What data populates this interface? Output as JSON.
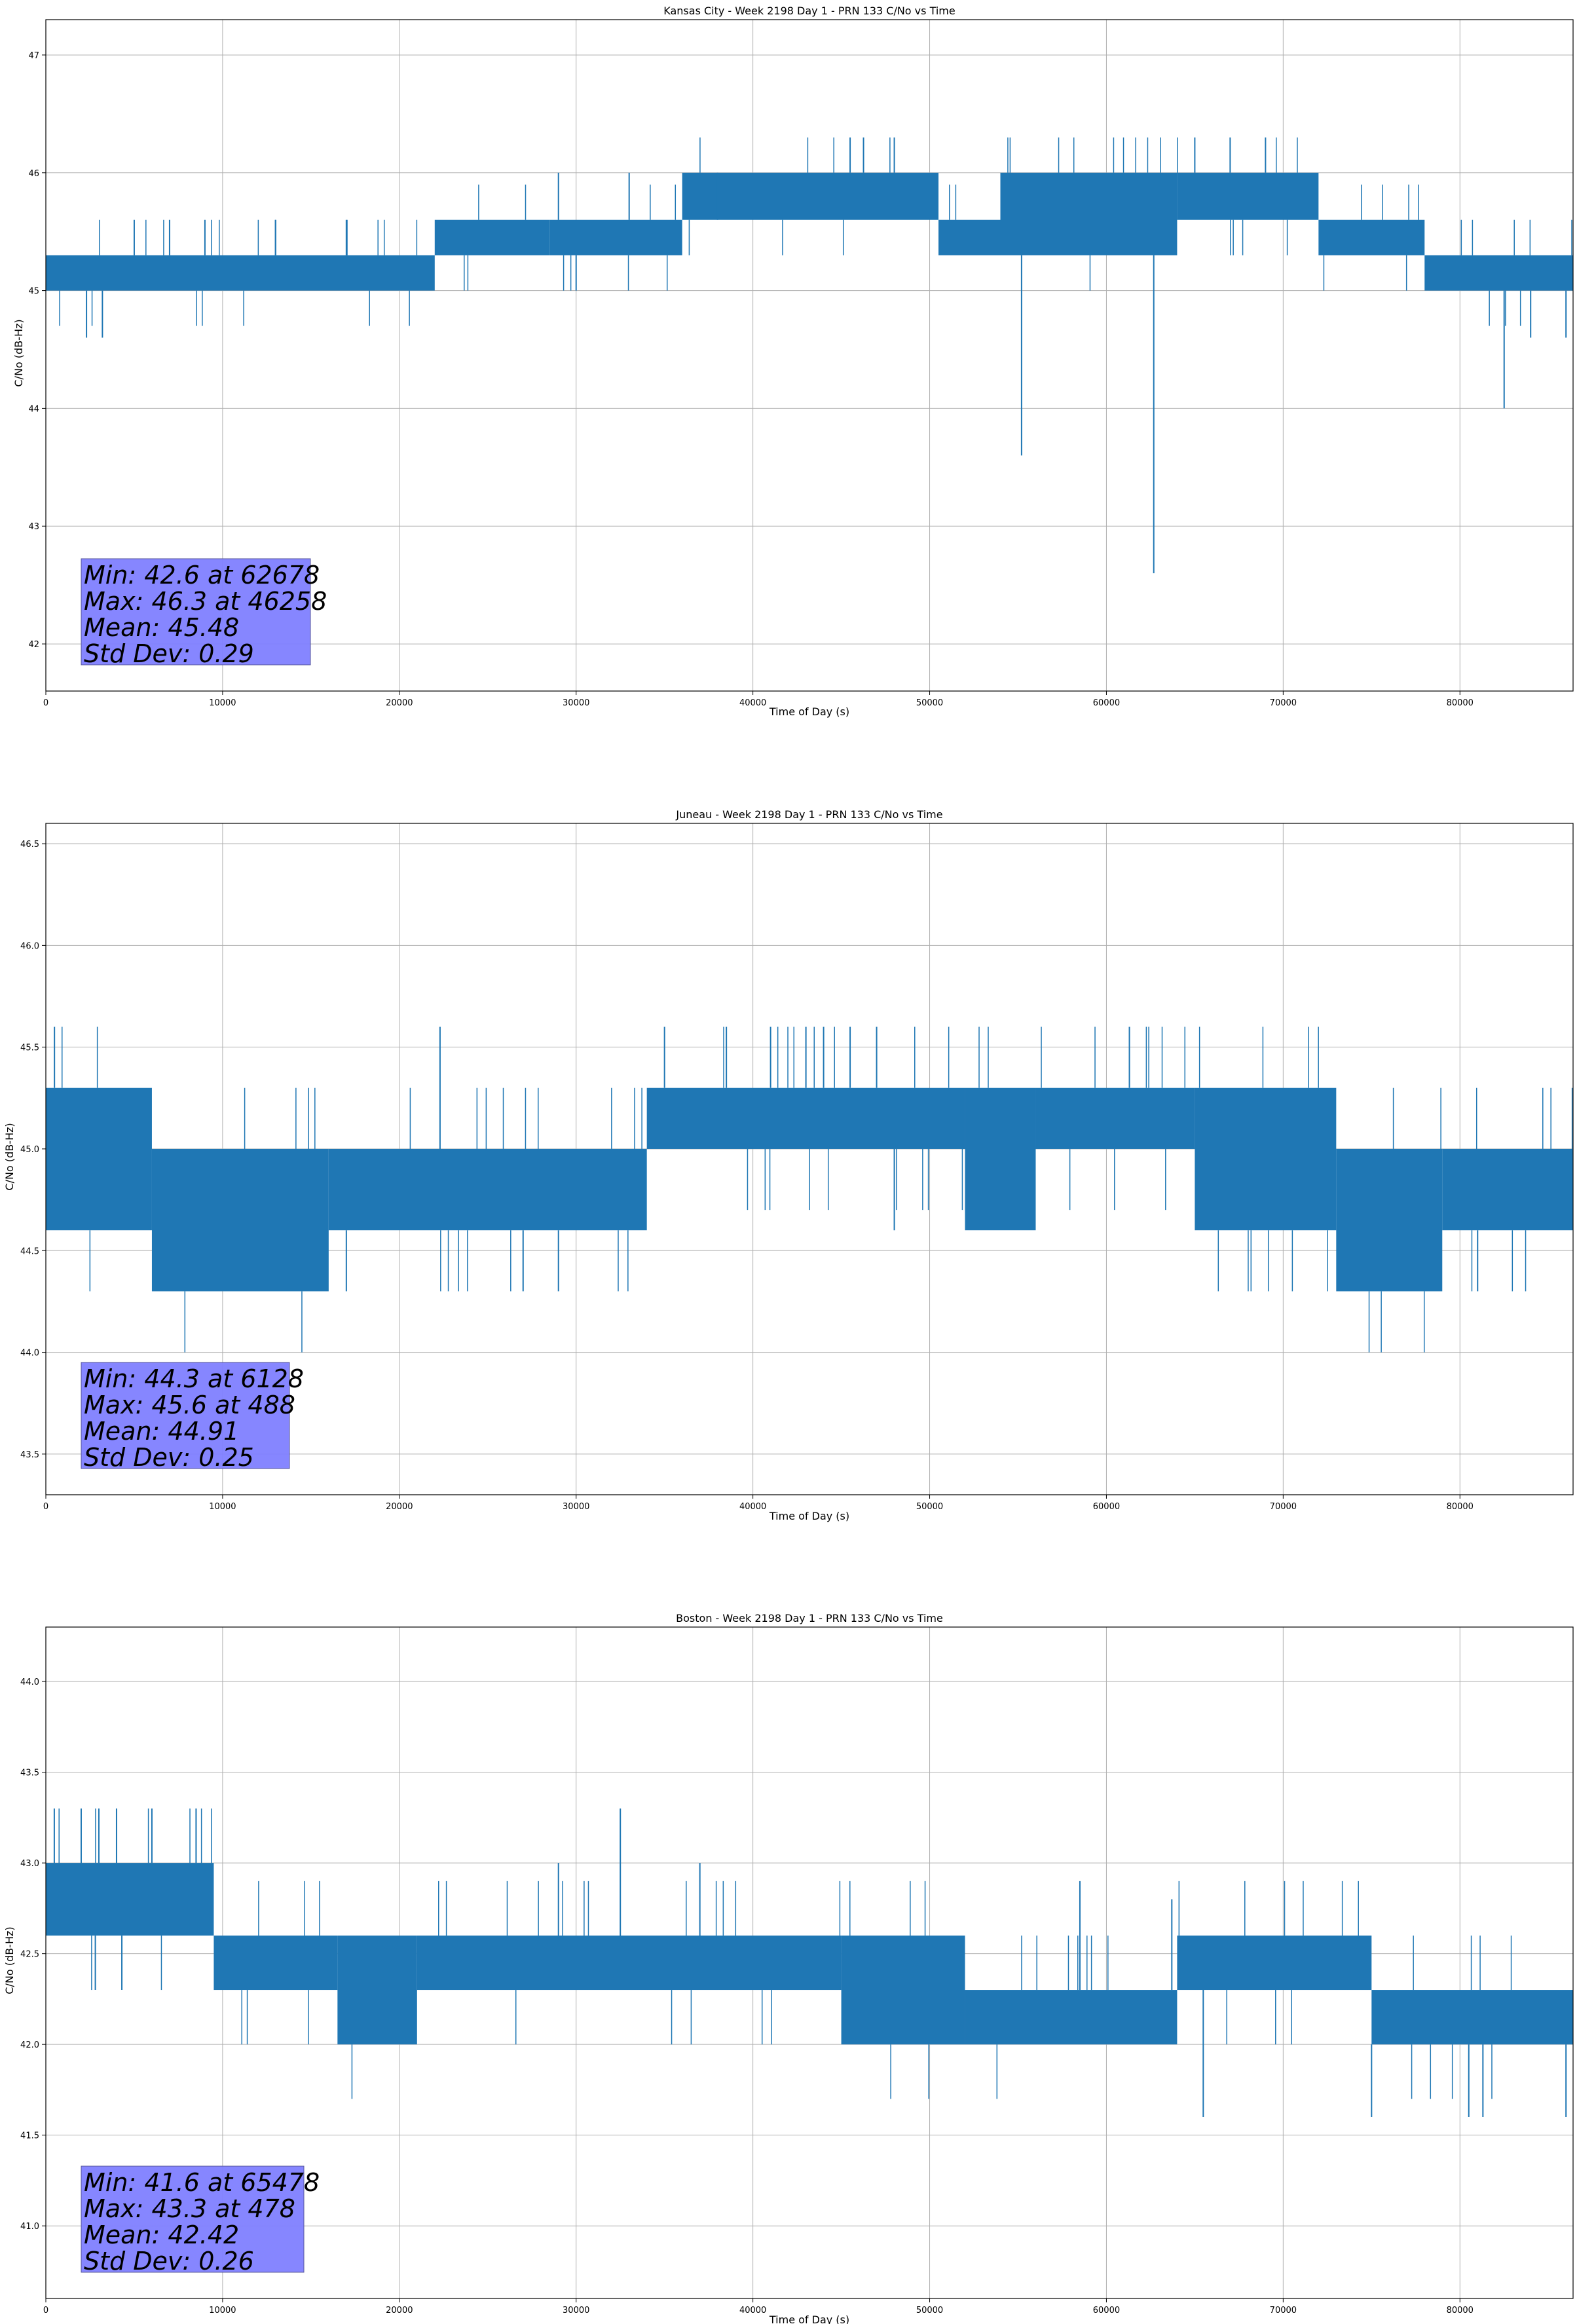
{
  "figure": {
    "background": "#ffffff",
    "line_color": "#1f77b4",
    "grid_color": "#b0b0b0",
    "stats_box_color": "#8080ff"
  },
  "chart_data": [
    {
      "type": "line",
      "title": "Kansas City - Week 2198 Day 1 - PRN 133 C/No vs Time",
      "xlabel": "Time of Day (s)",
      "ylabel": "C/No (dB-Hz)",
      "xlim": [
        0,
        86400
      ],
      "ylim": [
        41.6,
        47.3
      ],
      "x_ticks": [
        0,
        10000,
        20000,
        30000,
        40000,
        50000,
        60000,
        70000,
        80000
      ],
      "y_ticks": [
        42,
        43,
        44,
        45,
        46,
        47
      ],
      "y_tick_labels": [
        "42",
        "43",
        "44",
        "45",
        "46",
        "47"
      ],
      "grid": true,
      "stats_box": {
        "placement": "bottom-left",
        "lines": [
          "Min: 42.6 at 62678",
          "Max: 46.3 at 46258",
          "Mean: 45.48",
          "Std Dev: 0.29"
        ]
      },
      "series": [
        {
          "segments": [
            {
              "x0": 0,
              "x1": 22000,
              "lo": 45.0,
              "hi": 45.3
            },
            {
              "x0": 22000,
              "x1": 28500,
              "lo": 45.3,
              "hi": 45.6
            },
            {
              "x0": 28500,
              "x1": 36000,
              "lo": 45.3,
              "hi": 45.6
            },
            {
              "x0": 36000,
              "x1": 50500,
              "lo": 45.6,
              "hi": 46.0
            },
            {
              "x0": 50500,
              "x1": 54000,
              "lo": 45.3,
              "hi": 45.6
            },
            {
              "x0": 54000,
              "x1": 64000,
              "lo": 45.3,
              "hi": 46.0
            },
            {
              "x0": 64000,
              "x1": 72000,
              "lo": 45.6,
              "hi": 46.0
            },
            {
              "x0": 72000,
              "x1": 78000,
              "lo": 45.3,
              "hi": 45.6
            },
            {
              "x0": 78000,
              "x1": 86400,
              "lo": 45.0,
              "hi": 45.3
            }
          ],
          "spikes": [
            {
              "x": 2300,
              "y": 44.6
            },
            {
              "x": 3200,
              "y": 44.6
            },
            {
              "x": 5000,
              "y": 45.6
            },
            {
              "x": 7000,
              "y": 45.6
            },
            {
              "x": 9000,
              "y": 45.6
            },
            {
              "x": 13000,
              "y": 45.6
            },
            {
              "x": 17000,
              "y": 45.6
            },
            {
              "x": 30000,
              "y": 45.0
            },
            {
              "x": 29000,
              "y": 46.0
            },
            {
              "x": 33000,
              "y": 46.0
            },
            {
              "x": 38000,
              "y": 46.0
            },
            {
              "x": 45500,
              "y": 46.3
            },
            {
              "x": 46258,
              "y": 46.3
            },
            {
              "x": 48000,
              "y": 46.3
            },
            {
              "x": 55200,
              "y": 43.6
            },
            {
              "x": 62678,
              "y": 42.6
            },
            {
              "x": 65000,
              "y": 46.3
            },
            {
              "x": 67000,
              "y": 46.3
            },
            {
              "x": 69000,
              "y": 46.3
            },
            {
              "x": 82500,
              "y": 44.0
            },
            {
              "x": 84000,
              "y": 44.6
            },
            {
              "x": 86000,
              "y": 44.6
            }
          ]
        }
      ]
    },
    {
      "type": "line",
      "title": "Juneau - Week 2198 Day 1 - PRN 133 C/No vs Time",
      "xlabel": "Time of Day (s)",
      "ylabel": "C/No (dB-Hz)",
      "xlim": [
        0,
        86400
      ],
      "ylim": [
        43.3,
        46.6
      ],
      "x_ticks": [
        0,
        10000,
        20000,
        30000,
        40000,
        50000,
        60000,
        70000,
        80000
      ],
      "y_ticks": [
        43.5,
        44.0,
        44.5,
        45.0,
        45.5,
        46.0,
        46.5
      ],
      "y_tick_labels": [
        "43.5",
        "44.0",
        "44.5",
        "45.0",
        "45.5",
        "46.0",
        "46.5"
      ],
      "grid": true,
      "stats_box": {
        "placement": "bottom-left",
        "lines": [
          "Min: 44.3 at 6128",
          "Max: 45.6 at 488",
          "Mean: 44.91",
          "Std Dev: 0.25"
        ]
      },
      "series": [
        {
          "segments": [
            {
              "x0": 0,
              "x1": 6000,
              "lo": 44.6,
              "hi": 45.3
            },
            {
              "x0": 6000,
              "x1": 16000,
              "lo": 44.3,
              "hi": 45.0
            },
            {
              "x0": 16000,
              "x1": 34000,
              "lo": 44.6,
              "hi": 45.0
            },
            {
              "x0": 34000,
              "x1": 52000,
              "lo": 45.0,
              "hi": 45.3
            },
            {
              "x0": 52000,
              "x1": 56000,
              "lo": 44.6,
              "hi": 45.3
            },
            {
              "x0": 56000,
              "x1": 65000,
              "lo": 45.0,
              "hi": 45.3
            },
            {
              "x0": 65000,
              "x1": 73000,
              "lo": 44.6,
              "hi": 45.3
            },
            {
              "x0": 73000,
              "x1": 79000,
              "lo": 44.3,
              "hi": 45.0
            },
            {
              "x0": 79000,
              "x1": 86400,
              "lo": 44.6,
              "hi": 45.0
            }
          ],
          "spikes": [
            {
              "x": 488,
              "y": 45.6
            },
            {
              "x": 6128,
              "y": 44.3
            },
            {
              "x": 17000,
              "y": 44.3
            },
            {
              "x": 22300,
              "y": 45.6
            },
            {
              "x": 27000,
              "y": 44.3
            },
            {
              "x": 29000,
              "y": 44.3
            },
            {
              "x": 35000,
              "y": 45.6
            },
            {
              "x": 38500,
              "y": 45.6
            },
            {
              "x": 41000,
              "y": 45.6
            },
            {
              "x": 43000,
              "y": 45.6
            },
            {
              "x": 44000,
              "y": 45.6
            },
            {
              "x": 45500,
              "y": 45.6
            },
            {
              "x": 47000,
              "y": 45.6
            },
            {
              "x": 48000,
              "y": 44.6
            },
            {
              "x": 61300,
              "y": 45.6
            },
            {
              "x": 81000,
              "y": 44.3
            }
          ]
        }
      ]
    },
    {
      "type": "line",
      "title": "Boston - Week 2198 Day 1 - PRN 133 C/No vs Time",
      "xlabel": "Time of Day (s)",
      "ylabel": "C/No (dB-Hz)",
      "xlim": [
        0,
        86400
      ],
      "ylim": [
        40.6,
        44.3
      ],
      "x_ticks": [
        0,
        10000,
        20000,
        30000,
        40000,
        50000,
        60000,
        70000,
        80000
      ],
      "y_ticks": [
        41.0,
        41.5,
        42.0,
        42.5,
        43.0,
        43.5,
        44.0
      ],
      "y_tick_labels": [
        "41.0",
        "41.5",
        "42.0",
        "42.5",
        "43.0",
        "43.5",
        "44.0"
      ],
      "grid": true,
      "stats_box": {
        "placement": "bottom-left",
        "lines": [
          "Min: 41.6 at 65478",
          "Max: 43.3 at 478",
          "Mean: 42.42",
          "Std Dev: 0.26"
        ]
      },
      "series": [
        {
          "segments": [
            {
              "x0": 0,
              "x1": 9500,
              "lo": 42.6,
              "hi": 43.0
            },
            {
              "x0": 9500,
              "x1": 16500,
              "lo": 42.3,
              "hi": 42.6
            },
            {
              "x0": 16500,
              "x1": 21000,
              "lo": 42.0,
              "hi": 42.6
            },
            {
              "x0": 21000,
              "x1": 45000,
              "lo": 42.3,
              "hi": 42.6
            },
            {
              "x0": 45000,
              "x1": 52000,
              "lo": 42.0,
              "hi": 42.6
            },
            {
              "x0": 52000,
              "x1": 64000,
              "lo": 42.0,
              "hi": 42.3
            },
            {
              "x0": 64000,
              "x1": 75000,
              "lo": 42.3,
              "hi": 42.6
            },
            {
              "x0": 75000,
              "x1": 86400,
              "lo": 42.0,
              "hi": 42.3
            }
          ],
          "spikes": [
            {
              "x": 478,
              "y": 43.3
            },
            {
              "x": 2000,
              "y": 43.3
            },
            {
              "x": 3000,
              "y": 43.3
            },
            {
              "x": 4000,
              "y": 43.3
            },
            {
              "x": 6000,
              "y": 43.3
            },
            {
              "x": 8500,
              "y": 43.3
            },
            {
              "x": 2800,
              "y": 42.3
            },
            {
              "x": 4300,
              "y": 42.3
            },
            {
              "x": 29000,
              "y": 43.0
            },
            {
              "x": 32500,
              "y": 43.3
            },
            {
              "x": 37000,
              "y": 43.0
            },
            {
              "x": 58500,
              "y": 42.9
            },
            {
              "x": 63700,
              "y": 42.8
            },
            {
              "x": 65478,
              "y": 41.6
            },
            {
              "x": 75000,
              "y": 41.6
            },
            {
              "x": 80500,
              "y": 41.6
            },
            {
              "x": 81300,
              "y": 41.6
            },
            {
              "x": 86000,
              "y": 41.6
            }
          ]
        }
      ]
    }
  ]
}
